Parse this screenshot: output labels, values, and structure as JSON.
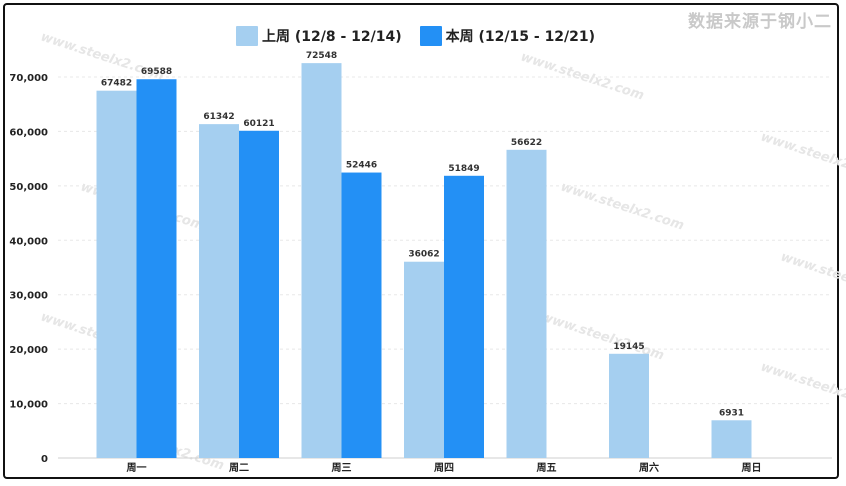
{
  "source_text": "数据来源于钢小二",
  "watermark_text": "www.steelx2.com",
  "colors": {
    "last_week": "#a5cff0",
    "this_week": "#2390f5",
    "grid": "#e8e8e8"
  },
  "chart_data": {
    "type": "bar",
    "categories": [
      "周一",
      "周二",
      "周三",
      "周四",
      "周五",
      "周六",
      "周日"
    ],
    "series": [
      {
        "name": "上周 (12/8 - 12/14)",
        "values": [
          67482,
          61342,
          72548,
          36062,
          56622,
          19145,
          6931
        ]
      },
      {
        "name": "本周 (12/15 - 12/21)",
        "values": [
          69588,
          60121,
          52446,
          51849,
          null,
          null,
          null
        ]
      }
    ],
    "y_ticks": [
      "0",
      "10,000",
      "20,000",
      "30,000",
      "40,000",
      "50,000",
      "60,000",
      "70,000"
    ],
    "ylim": [
      0,
      70000
    ],
    "grid": true,
    "legend_position": "top-center"
  }
}
